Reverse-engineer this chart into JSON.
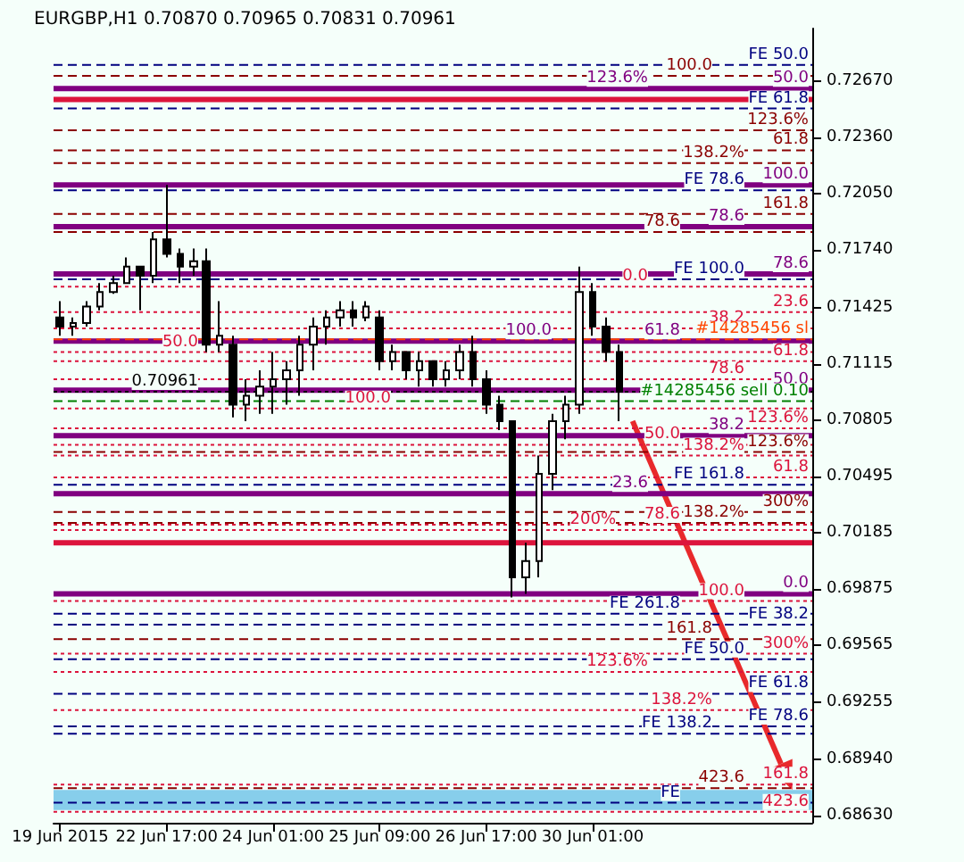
{
  "chart_data": {
    "type": "candlestick",
    "title": "EURGBP,H1 0.70870 0.70965 0.70831 0.70961",
    "categories": [
      "19 Jun 2015",
      null,
      null,
      null,
      null,
      null,
      null,
      null,
      "22 Jun 17:00",
      null,
      null,
      null,
      null,
      null,
      null,
      null,
      "24 Jun 01:00",
      null,
      null,
      null,
      null,
      null,
      null,
      null,
      "25 Jun 09:00",
      null,
      null,
      null,
      null,
      null,
      null,
      null,
      "26 Jun 17:00",
      null,
      null,
      null,
      null,
      null,
      null,
      null,
      "30 Jun 01:00",
      null,
      null,
      null,
      null,
      null,
      null,
      null,
      null,
      null,
      null,
      null,
      null,
      null,
      null,
      null,
      null
    ],
    "ohlc": [
      [
        0.7137,
        0.7146,
        0.7127,
        0.7132
      ],
      [
        0.7132,
        0.7137,
        0.7127,
        0.7134
      ],
      [
        0.7134,
        0.7146,
        0.7132,
        0.7143
      ],
      [
        0.7143,
        0.7156,
        0.7141,
        0.7151
      ],
      [
        0.7151,
        0.716,
        0.715,
        0.7156
      ],
      [
        0.7156,
        0.717,
        0.7156,
        0.7165
      ],
      [
        0.7165,
        0.7165,
        0.7141,
        0.716
      ],
      [
        0.716,
        0.7184,
        0.7156,
        0.718
      ],
      [
        0.718,
        0.721,
        0.717,
        0.7172
      ],
      [
        0.7172,
        0.7175,
        0.7156,
        0.7165
      ],
      [
        0.7165,
        0.7175,
        0.716,
        0.7168
      ],
      [
        0.7168,
        0.7175,
        0.7118,
        0.7122
      ],
      [
        0.7122,
        0.7146,
        0.7118,
        0.7127
      ],
      [
        0.7122,
        0.7127,
        0.7082,
        0.7089
      ],
      [
        0.7089,
        0.7103,
        0.708,
        0.7094
      ],
      [
        0.7094,
        0.7108,
        0.7084,
        0.7099
      ],
      [
        0.7099,
        0.7118,
        0.7084,
        0.7103
      ],
      [
        0.7103,
        0.7113,
        0.7089,
        0.7108
      ],
      [
        0.7108,
        0.7127,
        0.7094,
        0.7122
      ],
      [
        0.7122,
        0.7137,
        0.7108,
        0.7132
      ],
      [
        0.7132,
        0.7141,
        0.7122,
        0.7137
      ],
      [
        0.7137,
        0.7146,
        0.7132,
        0.7141
      ],
      [
        0.7141,
        0.7146,
        0.7132,
        0.7137
      ],
      [
        0.7137,
        0.7146,
        0.7135,
        0.7143
      ],
      [
        0.7137,
        0.7141,
        0.7108,
        0.7113
      ],
      [
        0.7113,
        0.7122,
        0.7108,
        0.7118
      ],
      [
        0.7118,
        0.7118,
        0.7103,
        0.7108
      ],
      [
        0.7108,
        0.7118,
        0.7099,
        0.7113
      ],
      [
        0.7113,
        0.7113,
        0.7099,
        0.7103
      ],
      [
        0.7103,
        0.7113,
        0.7099,
        0.7108
      ],
      [
        0.7108,
        0.7122,
        0.7103,
        0.7118
      ],
      [
        0.7118,
        0.7127,
        0.7099,
        0.7103
      ],
      [
        0.7103,
        0.7108,
        0.7084,
        0.7089
      ],
      [
        0.7089,
        0.7094,
        0.7075,
        0.708
      ],
      [
        0.708,
        0.708,
        0.6983,
        0.6994
      ],
      [
        0.6994,
        0.7013,
        0.6985,
        0.7003
      ],
      [
        0.7003,
        0.7061,
        0.6994,
        0.7051
      ],
      [
        0.7051,
        0.7084,
        0.7042,
        0.708
      ],
      [
        0.708,
        0.7094,
        0.707,
        0.7089
      ],
      [
        0.7089,
        0.7165,
        0.7084,
        0.7151
      ],
      [
        0.7151,
        0.7156,
        0.7127,
        0.7132
      ],
      [
        0.7132,
        0.7137,
        0.7113,
        0.7118
      ],
      [
        0.7118,
        0.7122,
        0.708,
        0.70961
      ],
      null,
      null,
      null,
      null,
      null,
      null,
      null,
      null,
      null,
      null,
      null,
      null,
      null,
      null
    ],
    "color": "#000000",
    "ylim": [
      0.6859,
      0.7296
    ],
    "yticks": [
      {
        "value": 0.7267,
        "label": "0.72670"
      },
      {
        "value": 0.7236,
        "label": "0.72360"
      },
      {
        "value": 0.7205,
        "label": "0.72050"
      },
      {
        "value": 0.7174,
        "label": "0.71740"
      },
      0.71425,
      0.71115,
      0.70805,
      0.70495,
      0.70185,
      0.69875,
      0.69565,
      0.69255,
      {
        "value": 0.6894,
        "label": "0.68940"
      },
      {
        "value": 0.6863,
        "label": "0.68630"
      }
    ],
    "grid": false,
    "ref_lines": [
      {
        "axis": "y",
        "value": 0.7263,
        "color": "#800080",
        "line_style": "solid"
      },
      {
        "axis": "y",
        "value": 0.721,
        "color": "#800080",
        "line_style": "solid"
      },
      {
        "axis": "y",
        "value": 0.7187,
        "color": "#800080",
        "line_style": "solid"
      },
      {
        "axis": "y",
        "value": 0.7161,
        "color": "#800080",
        "line_style": "solid"
      },
      {
        "axis": "y",
        "value": 0.7124,
        "color": "#800080",
        "line_style": "solid"
      },
      {
        "axis": "y",
        "value": 0.7097,
        "color": "#800080",
        "line_style": "solid"
      },
      {
        "axis": "y",
        "value": 0.7072,
        "color": "#800080",
        "line_style": "solid"
      },
      {
        "axis": "y",
        "value": 0.704,
        "color": "#800080",
        "line_style": "solid"
      },
      {
        "axis": "y",
        "value": 0.6985,
        "color": "#800080",
        "line_style": "solid"
      },
      {
        "axis": "y",
        "value": 0.7257,
        "color": "#dc143c",
        "line_style": "solid"
      },
      {
        "axis": "y",
        "value": 0.7013,
        "color": "#dc143c",
        "line_style": "solid"
      },
      {
        "axis": "y",
        "value": 0.7276,
        "color": "#000080",
        "line_style": "dashed"
      },
      {
        "axis": "y",
        "value": 0.7252,
        "color": "#000080",
        "line_style": "dashed"
      },
      {
        "axis": "y",
        "value": 0.7207,
        "color": "#000080",
        "line_style": "dashed"
      },
      {
        "axis": "y",
        "value": 0.7158,
        "color": "#000080",
        "line_style": "dashed"
      },
      {
        "axis": "y",
        "value": 0.7045,
        "color": "#000080",
        "line_style": "dashed"
      },
      {
        "axis": "y",
        "value": 0.6974,
        "color": "#000080",
        "line_style": "dashed"
      },
      {
        "axis": "y",
        "value": 0.6968,
        "color": "#000080",
        "line_style": "dashed"
      },
      {
        "axis": "y",
        "value": 0.6949,
        "color": "#000080",
        "line_style": "dashed"
      },
      {
        "axis": "y",
        "value": 0.693,
        "color": "#000080",
        "line_style": "dashed"
      },
      {
        "axis": "y",
        "value": 0.6912,
        "color": "#000080",
        "line_style": "dashed"
      },
      {
        "axis": "y",
        "value": 0.6908,
        "color": "#000080",
        "line_style": "dashed"
      },
      {
        "axis": "y",
        "value": 0.687,
        "color": "#000080",
        "line_style": "dashed"
      },
      {
        "axis": "y",
        "value": 0.727,
        "color": "#8b0000",
        "line_style": "dashed"
      },
      {
        "axis": "y",
        "value": 0.724,
        "color": "#8b0000",
        "line_style": "dashed"
      },
      {
        "axis": "y",
        "value": 0.7229,
        "color": "#8b0000",
        "line_style": "dashed"
      },
      {
        "axis": "y",
        "value": 0.7222,
        "color": "#8b0000",
        "line_style": "dashed"
      },
      {
        "axis": "y",
        "value": 0.7194,
        "color": "#8b0000",
        "line_style": "dashed"
      },
      {
        "axis": "y",
        "value": 0.7184,
        "color": "#8b0000",
        "line_style": "dashed"
      },
      {
        "axis": "y",
        "value": 0.7063,
        "color": "#8b0000",
        "line_style": "dashed"
      },
      {
        "axis": "y",
        "value": 0.703,
        "color": "#8b0000",
        "line_style": "dashed"
      },
      {
        "axis": "y",
        "value": 0.7024,
        "color": "#8b0000",
        "line_style": "dashed"
      },
      {
        "axis": "y",
        "value": 0.696,
        "color": "#8b0000",
        "line_style": "dashed"
      },
      {
        "axis": "y",
        "value": 0.6878,
        "color": "#8b0000",
        "line_style": "dashed"
      },
      {
        "axis": "y",
        "value": 0.7154,
        "color": "#dc143c",
        "line_style": "dotted"
      },
      {
        "axis": "y",
        "value": 0.714,
        "color": "#dc143c",
        "line_style": "dotted"
      },
      {
        "axis": "y",
        "value": 0.7131,
        "color": "#dc143c",
        "line_style": "dotted"
      },
      {
        "axis": "y",
        "value": 0.7118,
        "color": "#dc143c",
        "line_style": "dotted"
      },
      {
        "axis": "y",
        "value": 0.7113,
        "color": "#dc143c",
        "line_style": "dotted"
      },
      {
        "axis": "y",
        "value": 0.7103,
        "color": "#dc143c",
        "line_style": "dotted"
      },
      {
        "axis": "y",
        "value": 0.7087,
        "color": "#dc143c",
        "line_style": "dotted"
      },
      {
        "axis": "y",
        "value": 0.7076,
        "color": "#dc143c",
        "line_style": "dotted"
      },
      {
        "axis": "y",
        "value": 0.7067,
        "color": "#dc143c",
        "line_style": "dotted"
      },
      {
        "axis": "y",
        "value": 0.7061,
        "color": "#dc143c",
        "line_style": "dotted"
      },
      {
        "axis": "y",
        "value": 0.7049,
        "color": "#dc143c",
        "line_style": "dotted"
      },
      {
        "axis": "y",
        "value": 0.7023,
        "color": "#dc143c",
        "line_style": "dotted"
      },
      {
        "axis": "y",
        "value": 0.702,
        "color": "#dc143c",
        "line_style": "dotted"
      },
      {
        "axis": "y",
        "value": 0.6981,
        "color": "#dc143c",
        "line_style": "dotted"
      },
      {
        "axis": "y",
        "value": 0.6952,
        "color": "#dc143c",
        "line_style": "dotted"
      },
      {
        "axis": "y",
        "value": 0.6942,
        "color": "#dc143c",
        "line_style": "dotted"
      },
      {
        "axis": "y",
        "value": 0.6921,
        "color": "#dc143c",
        "line_style": "dotted"
      },
      {
        "axis": "y",
        "value": 0.688,
        "color": "#dc143c",
        "line_style": "dotted"
      },
      {
        "axis": "y",
        "value": 0.6865,
        "color": "#dc143c",
        "line_style": "dotted"
      },
      {
        "axis": "y",
        "value": 0.7125,
        "label": "#14285456 sl",
        "color": "#ff4500",
        "line_style": "dashed"
      },
      {
        "axis": "y",
        "value": 0.7091,
        "label": "#14285456 sell 0.10",
        "color": "#008000",
        "line_style": "dashed"
      },
      {
        "axis": "y",
        "value": 0.70961,
        "label": "0.70961",
        "color": "#000000",
        "line_style": "dotted"
      }
    ],
    "annotations": [
      {
        "text": "50.0",
        "y": 0.7263
      },
      {
        "text": "123.6%",
        "y": 0.7263
      },
      {
        "text": "100.0",
        "y": 0.721
      },
      {
        "text": "78.6",
        "y": 0.7187
      },
      {
        "text": "78.6",
        "y": 0.7161
      },
      {
        "text": "61.8",
        "y": 0.7124
      },
      {
        "text": "100.0",
        "y": 0.7124
      },
      {
        "text": "50.0",
        "y": 0.7097
      },
      {
        "text": "38.2",
        "y": 0.7072
      },
      {
        "text": "23.6",
        "y": 0.704
      },
      {
        "text": "0.0",
        "y": 0.6985
      },
      {
        "text": "FE 50.0",
        "y": 0.7276
      },
      {
        "text": "FE 61.8",
        "y": 0.7252
      },
      {
        "text": "FE 78.6",
        "y": 0.7207
      },
      {
        "text": "FE 100.0",
        "y": 0.7158
      },
      {
        "text": "FE 161.8",
        "y": 0.7045
      },
      {
        "text": "FE 261.8",
        "y": 0.6974
      },
      {
        "text": "FE 38.2",
        "y": 0.6968
      },
      {
        "text": "FE 50.0",
        "y": 0.6949
      },
      {
        "text": "FE 61.8",
        "y": 0.693
      },
      {
        "text": "FE 78.6",
        "y": 0.6912
      },
      {
        "text": "FE 138.2",
        "y": 0.6908
      },
      {
        "text": "FE",
        "y": 0.687
      },
      {
        "text": "100.0",
        "y": 0.727
      },
      {
        "text": "123.6%",
        "y": 0.724
      },
      {
        "text": "61.8",
        "y": 0.7229
      },
      {
        "text": "138.2%",
        "y": 0.7222
      },
      {
        "text": "161.8",
        "y": 0.7194
      },
      {
        "text": "78.6",
        "y": 0.7184
      },
      {
        "text": "123.6%",
        "y": 0.7063
      },
      {
        "text": "300%",
        "y": 0.703
      },
      {
        "text": "138.2%",
        "y": 0.7024
      },
      {
        "text": "161.8",
        "y": 0.696
      },
      {
        "text": "423.6",
        "y": 0.6878
      },
      {
        "text": "0.0",
        "y": 0.7154
      },
      {
        "text": "23.6",
        "y": 0.714
      },
      {
        "text": "38.2",
        "y": 0.7131
      },
      {
        "text": "50.0",
        "y": 0.7118
      },
      {
        "text": "61.8",
        "y": 0.7113
      },
      {
        "text": "78.6",
        "y": 0.7103
      },
      {
        "text": "100.0",
        "y": 0.7087
      },
      {
        "text": "123.6%",
        "y": 0.7076
      },
      {
        "text": "50.0",
        "y": 0.7067
      },
      {
        "text": "138.2%",
        "y": 0.7061
      },
      {
        "text": "61.8",
        "y": 0.7049
      },
      {
        "text": "78.6",
        "y": 0.7023
      },
      {
        "text": "200%",
        "y": 0.702
      },
      {
        "text": "100.0",
        "y": 0.6981
      },
      {
        "text": "300%",
        "y": 0.6952
      },
      {
        "text": "123.6%",
        "y": 0.6942
      },
      {
        "text": "138.2%",
        "y": 0.6921
      },
      {
        "text": "161.8",
        "y": 0.688
      },
      {
        "text": "423.6",
        "y": 0.6865
      }
    ],
    "bands": [
      {
        "axis": "y",
        "from": 0.6866,
        "to": 0.6877,
        "color": "#87ceeb"
      }
    ]
  }
}
